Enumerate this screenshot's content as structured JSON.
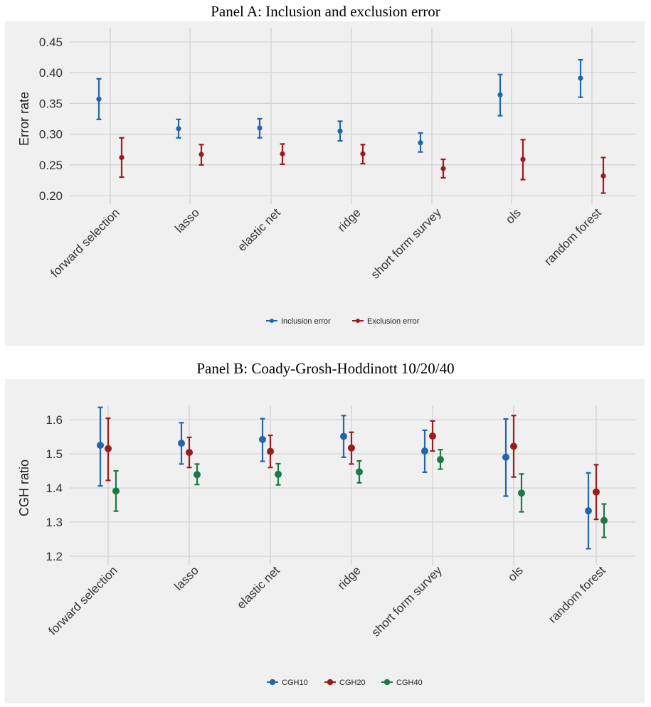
{
  "chart_data": [
    {
      "type": "scatter",
      "title": "Panel A: Inclusion and exclusion error",
      "ylabel": "Error rate",
      "xlabel": "",
      "categories": [
        "forward selection",
        "lasso",
        "elastic net",
        "ridge",
        "short form survey",
        "ols",
        "random forest"
      ],
      "ylim": [
        0.2,
        0.45
      ],
      "yticks": [
        0.2,
        0.25,
        0.3,
        0.35,
        0.4,
        0.45
      ],
      "ytick_labels": [
        "0.20",
        "0.25",
        "0.30",
        "0.35",
        "0.40",
        "0.45"
      ],
      "grid": true,
      "legend_position": "bottom",
      "series": [
        {
          "name": "Inclusion error",
          "color": "#2166ac",
          "values": [
            0.357,
            0.309,
            0.31,
            0.305,
            0.286,
            0.364,
            0.391
          ],
          "lower": [
            0.324,
            0.294,
            0.294,
            0.289,
            0.271,
            0.33,
            0.36
          ],
          "upper": [
            0.39,
            0.324,
            0.325,
            0.321,
            0.302,
            0.397,
            0.421
          ]
        },
        {
          "name": "Exclusion error",
          "color": "#9b1c1c",
          "values": [
            0.262,
            0.267,
            0.268,
            0.268,
            0.244,
            0.259,
            0.232
          ],
          "lower": [
            0.23,
            0.25,
            0.251,
            0.252,
            0.229,
            0.226,
            0.204
          ],
          "upper": [
            0.294,
            0.283,
            0.284,
            0.283,
            0.259,
            0.291,
            0.262
          ]
        }
      ]
    },
    {
      "type": "scatter",
      "title": "Panel B: Coady-Grosh-Hoddinott 10/20/40",
      "ylabel": "CGH ratio",
      "xlabel": "",
      "categories": [
        "forward selection",
        "lasso",
        "elastic net",
        "ridge",
        "short form survey",
        "ols",
        "random forest"
      ],
      "ylim": [
        1.2,
        1.6
      ],
      "yticks": [
        1.2,
        1.3,
        1.4,
        1.5,
        1.6
      ],
      "ytick_labels": [
        "1.2",
        "1.3",
        "1.4",
        "1.5",
        "1.6"
      ],
      "grid": true,
      "legend_position": "bottom",
      "series": [
        {
          "name": "CGH10",
          "color": "#2166ac",
          "values": [
            1.525,
            1.531,
            1.542,
            1.551,
            1.508,
            1.49,
            1.333
          ],
          "lower": [
            1.406,
            1.47,
            1.478,
            1.49,
            1.446,
            1.376,
            1.222
          ],
          "upper": [
            1.636,
            1.591,
            1.603,
            1.612,
            1.569,
            1.602,
            1.444
          ]
        },
        {
          "name": "CGH20",
          "color": "#9b1c1c",
          "values": [
            1.515,
            1.504,
            1.507,
            1.517,
            1.552,
            1.522,
            1.388
          ],
          "lower": [
            1.422,
            1.46,
            1.46,
            1.47,
            1.508,
            1.432,
            1.308
          ],
          "upper": [
            1.604,
            1.548,
            1.554,
            1.563,
            1.596,
            1.612,
            1.468
          ]
        },
        {
          "name": "CGH40",
          "color": "#1b7a43",
          "values": [
            1.391,
            1.439,
            1.44,
            1.447,
            1.483,
            1.385,
            1.305
          ],
          "lower": [
            1.332,
            1.41,
            1.409,
            1.415,
            1.455,
            1.33,
            1.255
          ],
          "upper": [
            1.45,
            1.47,
            1.471,
            1.479,
            1.512,
            1.441,
            1.353
          ]
        }
      ]
    }
  ]
}
